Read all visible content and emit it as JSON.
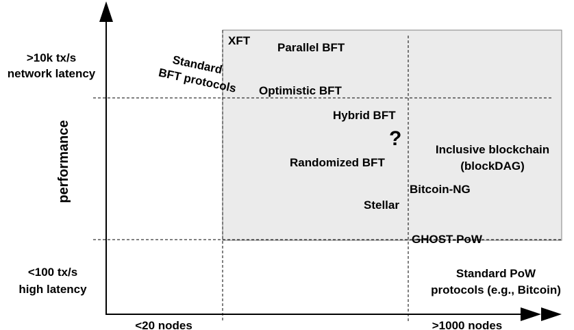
{
  "colors": {
    "region_fill": "#ebebeb",
    "region_stroke": "#808080",
    "line": "#000000",
    "background": "#ffffff"
  },
  "axes": {
    "y_title": "performance",
    "y_high": {
      "line1": ">10k tx/s",
      "line2": "network latency"
    },
    "y_low": {
      "line1": "<100 tx/s",
      "line2": "high latency"
    },
    "x_low": "<20 nodes",
    "x_high": ">1000 nodes"
  },
  "protocols": {
    "standard_bft": {
      "line1": "Standard",
      "line2": "BFT protocols"
    },
    "xft": "XFT",
    "parallel_bft": "Parallel BFT",
    "optimistic_bft": "Optimistic BFT",
    "hybrid_bft": "Hybrid BFT",
    "unknown": "?",
    "randomized_bft": "Randomized BFT",
    "inclusive_blockchain": {
      "line1": "Inclusive blockchain",
      "line2": "(blockDAG)"
    },
    "bitcoin_ng": "Bitcoin-NG",
    "stellar": "Stellar",
    "ghost_pow": "GHOST-PoW",
    "standard_pow": {
      "line1": "Standard PoW",
      "line2": "protocols (e.g., Bitcoin)"
    }
  }
}
